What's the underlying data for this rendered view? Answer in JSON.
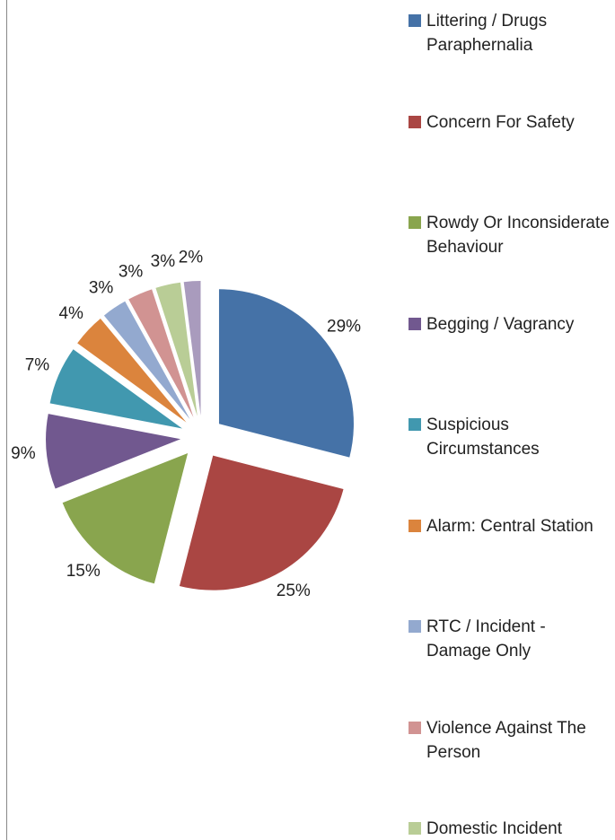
{
  "chart_data": {
    "type": "pie",
    "categories": [
      "Littering / Drugs Paraphernalia",
      "Concern For Safety",
      "Rowdy Or Inconsiderate Behaviour",
      "Begging / Vagrancy",
      "Suspicious Circumstances",
      "Alarm: Central Station",
      "RTC / Incident - Damage Only",
      "Violence Against The Person",
      "Domestic Incident",
      null
    ],
    "values": [
      29,
      25,
      15,
      9,
      7,
      4,
      3,
      3,
      3,
      2
    ],
    "value_labels": [
      "29%",
      "25%",
      "15%",
      "9%",
      "7%",
      "4%",
      "3%",
      "3%",
      "3%",
      "2%"
    ],
    "colors": [
      "#4572a7",
      "#aa4643",
      "#89a54e",
      "#71588f",
      "#4198af",
      "#db843d",
      "#93a9cf",
      "#d19392",
      "#b9cd96",
      "#a99bbd"
    ],
    "legend": "right"
  }
}
